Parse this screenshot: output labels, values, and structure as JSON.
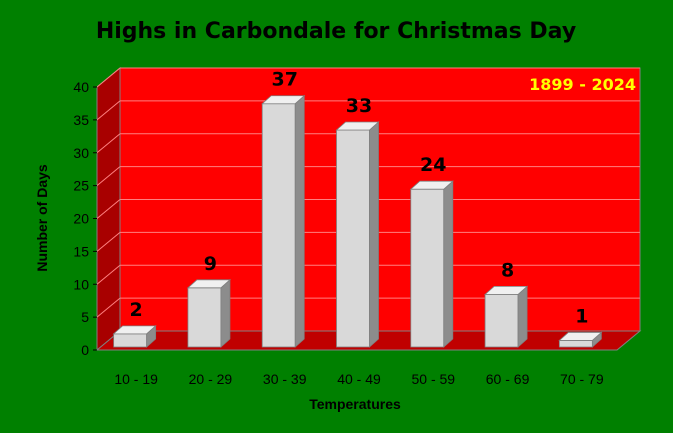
{
  "chart_data": {
    "type": "bar",
    "title": "Highs in Carbondale for Christmas Day",
    "annotation": "1899 - 2024",
    "xlabel": "Temperatures",
    "ylabel": "Number of Days",
    "categories": [
      "10 - 19",
      "20 - 29",
      "30 - 39",
      "40 - 49",
      "50 - 59",
      "60 - 69",
      "70 - 79"
    ],
    "values": [
      2,
      9,
      37,
      33,
      24,
      8,
      1
    ],
    "ylim": [
      0,
      40
    ],
    "yticks": [
      0,
      5,
      10,
      15,
      20,
      25,
      30,
      35,
      40
    ],
    "grid": true,
    "legend": "none",
    "style": "3d",
    "colors": {
      "background": "#008000",
      "plot_back_wall": "#ff0000",
      "plot_side_wall": "#a80000",
      "plot_floor": "#c00000",
      "gridline": "#ff8080",
      "bar_front": "#d9d9d9",
      "bar_top": "#f0f0f0",
      "bar_side": "#8c8c8c",
      "annotation": "#ffff00"
    }
  }
}
